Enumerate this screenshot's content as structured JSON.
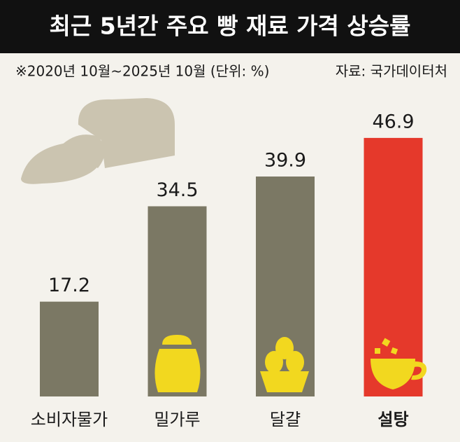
{
  "chart_data": {
    "type": "bar",
    "title": "최근 5년간 주요 빵 재료 가격 상승률",
    "subtitle": "※2020년 10월~2025년 10월 (단위: %)",
    "source": "자료: 국가데이터처",
    "categories": [
      "소비자물가",
      "밀가루",
      "달걀",
      "설탕"
    ],
    "values": [
      17.2,
      34.5,
      39.9,
      46.9
    ],
    "colors": [
      "#7b7864",
      "#7b7864",
      "#7b7864",
      "#e5392b"
    ]
  }
}
